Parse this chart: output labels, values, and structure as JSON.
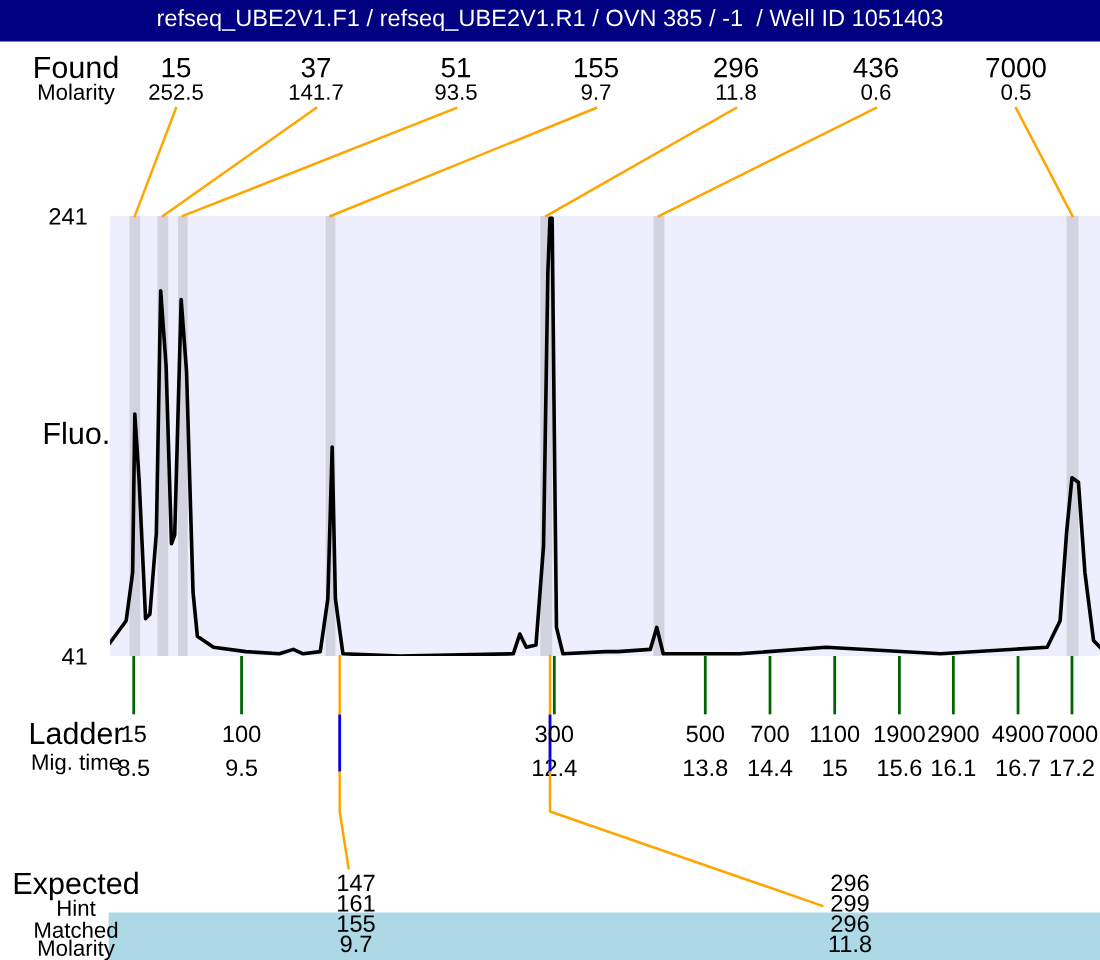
{
  "chart_data": {
    "type": "line",
    "title": "refseq_UBE2V1.F1 / refseq_UBE2V1.R1 / OVN 385 / -1  / Well ID 1051403",
    "ylabel": "Fluo.",
    "xlim": [
      8.28,
      17.46
    ],
    "ylim": [
      41,
      241
    ],
    "xticks": [
      8.5,
      9.5,
      12.4,
      13.8,
      14.4,
      15,
      15.6,
      16.1,
      16.7,
      17.2
    ],
    "yticks": [
      41,
      241
    ],
    "grid": false,
    "legend": false,
    "marker": "none",
    "line_style": "solid",
    "series": [
      {
        "color": "#000000",
        "x": [
          8.28,
          8.34,
          8.43,
          8.49,
          8.51,
          8.55,
          8.61,
          8.65,
          8.71,
          8.75,
          8.8,
          8.85,
          8.88,
          8.94,
          8.99,
          9.05,
          9.09,
          9.24,
          9.54,
          9.85,
          9.98,
          10.07,
          10.23,
          10.3,
          10.34,
          10.37,
          10.44,
          10.97,
          12.02,
          12.08,
          12.14,
          12.23,
          12.3,
          12.34,
          12.36,
          12.38,
          12.4,
          12.42,
          12.48,
          12.88,
          12.99,
          13.29,
          13.35,
          13.41,
          14.12,
          14.92,
          15.98,
          16.97,
          17.09,
          17.15,
          17.2,
          17.26,
          17.32,
          17.4,
          17.46
        ],
        "values": [
          47,
          51,
          57,
          79,
          151,
          121,
          58,
          60,
          97,
          207,
          173,
          92,
          96,
          203,
          170,
          70,
          50,
          45,
          43,
          42,
          44,
          42,
          43,
          67,
          136,
          67,
          42,
          41,
          42,
          51,
          45,
          46,
          91,
          215,
          240,
          240,
          142,
          54,
          42,
          43,
          43,
          44,
          54,
          42,
          42,
          45,
          42,
          45,
          57,
          97,
          122,
          120,
          79,
          48,
          45
        ]
      }
    ],
    "bands": [
      {
        "axis": "x",
        "from": 8.46,
        "to": 8.56,
        "label": "15\n252.5",
        "color": "#d3d3e0"
      },
      {
        "axis": "x",
        "from": 8.72,
        "to": 8.82,
        "label": "37\n141.7",
        "color": "#d3d3e0"
      },
      {
        "axis": "x",
        "from": 8.91,
        "to": 9.0,
        "label": "51\n93.5",
        "color": "#d3d3e0"
      },
      {
        "axis": "x",
        "from": 10.28,
        "to": 10.37,
        "label": "155\n9.7",
        "color": "#d3d3e0"
      },
      {
        "axis": "x",
        "from": 12.27,
        "to": 12.38,
        "label": "296\n11.8",
        "color": "#d3d3e0"
      },
      {
        "axis": "x",
        "from": 13.32,
        "to": 13.42,
        "label": "436\n0.6",
        "color": "#d3d3e0"
      },
      {
        "axis": "x",
        "from": 17.15,
        "to": 17.26,
        "label": "7000\n0.5",
        "color": "#d3d3e0"
      }
    ],
    "annotations": [
      "Found\nMolarity",
      "Ladder\nMig. time",
      "Expected\nHint\nMatched\nMolarity",
      {
        "text": "15",
        "x": 8.5,
        "y": 41
      },
      {
        "text": "100",
        "x": 9.5,
        "y": 41
      },
      {
        "text": "300",
        "x": 12.4,
        "y": 41
      },
      {
        "text": "500",
        "x": 13.8,
        "y": 41
      },
      {
        "text": "700",
        "x": 14.4,
        "y": 41
      },
      {
        "text": "1100",
        "x": 15,
        "y": 41
      },
      {
        "text": "1900",
        "x": 15.6,
        "y": 41
      },
      {
        "text": "2900",
        "x": 16.1,
        "y": 41
      },
      {
        "text": "4900",
        "x": 16.7,
        "y": 41
      },
      {
        "text": "7000",
        "x": 17.2,
        "y": 41
      },
      {
        "text": "147\n161\n155\n9.7",
        "x": 10.41,
        "y": 41
      },
      {
        "text": "296\n299\n296\n11.8",
        "x": 12.36,
        "y": 41
      }
    ]
  }
}
